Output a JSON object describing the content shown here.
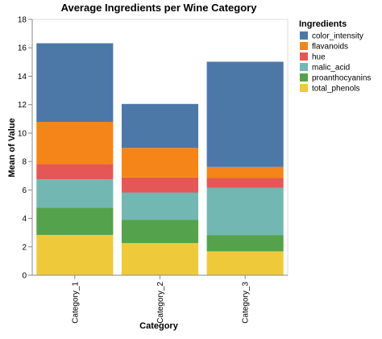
{
  "colors": {
    "color_intensity": "#4c78a8",
    "flavanoids": "#f58518",
    "hue": "#e45756",
    "malic_acid": "#72b7b2",
    "proanthocyanins": "#54a24b",
    "total_phenols": "#eeca3b"
  },
  "chart_data": {
    "type": "bar",
    "stacked": true,
    "title": "Average Ingredients per Wine Category",
    "xlabel": "Category",
    "ylabel": "Mean of Value",
    "ylim": [
      0,
      18
    ],
    "yticks": [
      0,
      2,
      4,
      6,
      8,
      10,
      12,
      14,
      16,
      18
    ],
    "grid": false,
    "legend_title": "Ingredients",
    "legend_position": "top-right",
    "categories": [
      "Category_1",
      "Category_2",
      "Category_3"
    ],
    "series": [
      {
        "name": "total_phenols",
        "values": [
          2.84,
          2.26,
          1.68
        ]
      },
      {
        "name": "proanthocyanins",
        "values": [
          1.9,
          1.63,
          1.15
        ]
      },
      {
        "name": "malic_acid",
        "values": [
          2.01,
          1.93,
          3.33
        ]
      },
      {
        "name": "hue",
        "values": [
          1.06,
          1.06,
          0.68
        ]
      },
      {
        "name": "flavanoids",
        "values": [
          2.98,
          2.08,
          0.78
        ]
      },
      {
        "name": "color_intensity",
        "values": [
          5.53,
          3.09,
          7.4
        ]
      }
    ],
    "legend_order": [
      "color_intensity",
      "flavanoids",
      "hue",
      "malic_acid",
      "proanthocyanins",
      "total_phenols"
    ]
  }
}
